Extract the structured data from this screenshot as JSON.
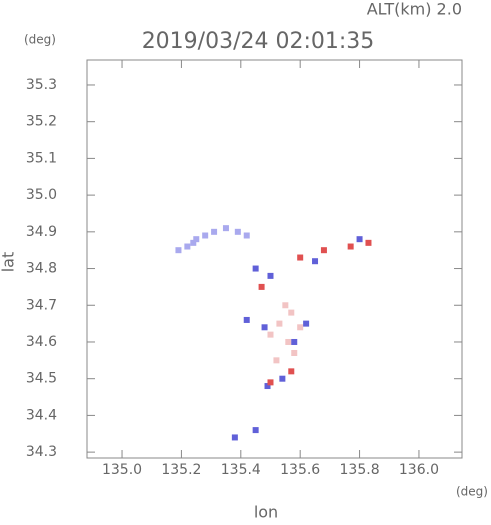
{
  "chart_data": {
    "type": "scatter",
    "top_label": "ALT(km) 2.0",
    "title": "2019/03/24 02:01:35",
    "y_unit": "(deg)",
    "x_unit": "(deg)",
    "xlabel": "lon",
    "ylabel": "lat",
    "xlim": [
      134.882,
      136.145
    ],
    "ylim": [
      34.284,
      35.368
    ],
    "xticks": [
      {
        "value": 135,
        "label": "135.0"
      },
      135.2,
      135.4,
      135.6,
      135.8,
      {
        "value": 136,
        "label": "136.0"
      }
    ],
    "yticks": [
      34.3,
      34.4,
      34.5,
      34.6,
      34.7,
      34.8,
      34.9,
      {
        "value": 35,
        "label": "35.0"
      },
      35.1,
      35.2,
      35.3
    ],
    "series": [
      {
        "color": "#a9a9ee",
        "x": [
          135.19,
          135.22,
          135.24,
          135.25,
          135.28,
          135.31,
          135.35,
          135.39,
          135.42
        ],
        "y": [
          34.85,
          34.86,
          34.87,
          34.88,
          34.89,
          34.9,
          34.91,
          34.9,
          34.89
        ]
      },
      {
        "color": "#f2c4c4",
        "x": [
          135.55,
          135.57,
          135.53,
          135.6,
          135.56,
          135.52,
          135.58,
          135.5
        ],
        "y": [
          34.7,
          34.68,
          34.65,
          34.64,
          34.6,
          34.55,
          34.57,
          34.62
        ]
      },
      {
        "color": "#6060d8",
        "x": [
          135.45,
          135.5,
          135.42,
          135.48,
          135.58,
          135.54,
          135.49,
          135.62,
          135.65,
          135.38,
          135.45,
          135.8
        ],
        "y": [
          34.8,
          34.78,
          34.66,
          34.64,
          34.6,
          34.5,
          34.48,
          34.65,
          34.82,
          34.34,
          34.36,
          34.88
        ]
      },
      {
        "color": "#e05050",
        "x": [
          135.68,
          135.77,
          135.83,
          135.57,
          135.5,
          135.6,
          135.47
        ],
        "y": [
          34.85,
          34.86,
          34.87,
          34.52,
          34.49,
          34.83,
          34.75
        ]
      }
    ]
  }
}
